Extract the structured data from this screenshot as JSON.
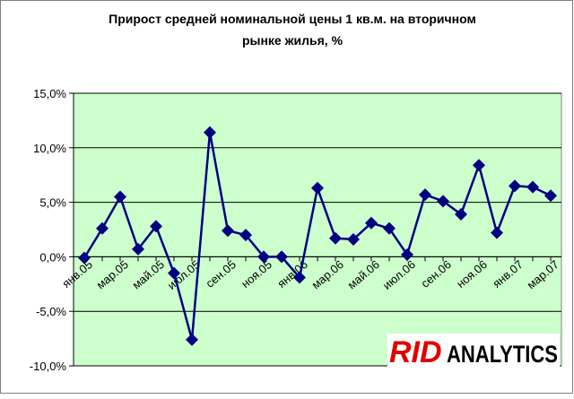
{
  "chart_data": {
    "type": "line",
    "title_lines": [
      "Прирост средней номинальной цены 1 кв.м. на вторичном",
      "рынке жилья, %"
    ],
    "categories": [
      "янв.05",
      null,
      "мар.05",
      null,
      "май.05",
      null,
      "июл.05",
      null,
      "сен.05",
      null,
      "ноя.05",
      null,
      "янв.06",
      null,
      "мар.06",
      null,
      "май.06",
      null,
      "июл.06",
      null,
      "сен.06",
      null,
      "ноя.06",
      null,
      "янв.07",
      null,
      "мар.07"
    ],
    "series": [
      {
        "name": "Прирост",
        "color": "#000080",
        "values": [
          -0.1,
          2.6,
          5.5,
          0.7,
          2.8,
          -1.5,
          -7.6,
          11.4,
          2.4,
          2.0,
          0.0,
          0.0,
          -1.9,
          6.3,
          1.7,
          1.6,
          3.1,
          2.6,
          0.2,
          5.7,
          5.1,
          3.9,
          8.4,
          2.2,
          6.5,
          6.4,
          5.6
        ]
      }
    ],
    "ylim": [
      -10,
      15
    ],
    "yticks": [
      {
        "value": -10,
        "label": "-10,0%"
      },
      {
        "value": -5,
        "label": "-5,0%"
      },
      {
        "value": 0,
        "label": "0,0%"
      },
      {
        "value": 5,
        "label": "5,0%"
      },
      {
        "value": 10,
        "label": "10,0%"
      },
      {
        "value": 15,
        "label": "15,0%"
      }
    ],
    "grid": true,
    "plot_color": "#ccffcc",
    "logo": {
      "part1": "RID",
      "part2": "ANALYTICS"
    }
  }
}
